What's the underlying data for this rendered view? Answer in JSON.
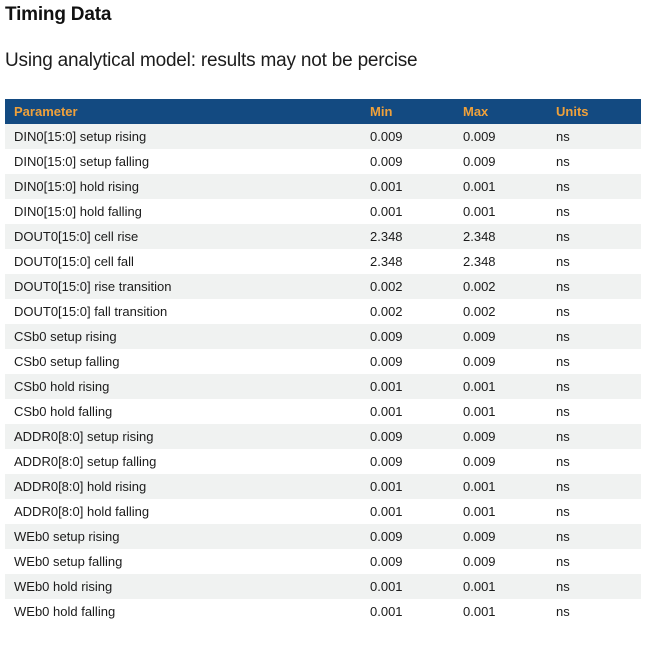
{
  "page": {
    "title": "Timing Data",
    "subtitle": "Using analytical model: results may not be percise"
  },
  "table": {
    "columns": [
      "Parameter",
      "Min",
      "Max",
      "Units"
    ],
    "rows": [
      {
        "parameter": "DIN0[15:0] setup rising",
        "min": "0.009",
        "max": "0.009",
        "units": "ns"
      },
      {
        "parameter": "DIN0[15:0] setup falling",
        "min": "0.009",
        "max": "0.009",
        "units": "ns"
      },
      {
        "parameter": "DIN0[15:0] hold rising",
        "min": "0.001",
        "max": "0.001",
        "units": "ns"
      },
      {
        "parameter": "DIN0[15:0] hold falling",
        "min": "0.001",
        "max": "0.001",
        "units": "ns"
      },
      {
        "parameter": "DOUT0[15:0] cell rise",
        "min": "2.348",
        "max": "2.348",
        "units": "ns"
      },
      {
        "parameter": "DOUT0[15:0] cell fall",
        "min": "2.348",
        "max": "2.348",
        "units": "ns"
      },
      {
        "parameter": "DOUT0[15:0] rise transition",
        "min": "0.002",
        "max": "0.002",
        "units": "ns"
      },
      {
        "parameter": "DOUT0[15:0] fall transition",
        "min": "0.002",
        "max": "0.002",
        "units": "ns"
      },
      {
        "parameter": "CSb0 setup rising",
        "min": "0.009",
        "max": "0.009",
        "units": "ns"
      },
      {
        "parameter": "CSb0 setup falling",
        "min": "0.009",
        "max": "0.009",
        "units": "ns"
      },
      {
        "parameter": "CSb0 hold rising",
        "min": "0.001",
        "max": "0.001",
        "units": "ns"
      },
      {
        "parameter": "CSb0 hold falling",
        "min": "0.001",
        "max": "0.001",
        "units": "ns"
      },
      {
        "parameter": "ADDR0[8:0] setup rising",
        "min": "0.009",
        "max": "0.009",
        "units": "ns"
      },
      {
        "parameter": "ADDR0[8:0] setup falling",
        "min": "0.009",
        "max": "0.009",
        "units": "ns"
      },
      {
        "parameter": "ADDR0[8:0] hold rising",
        "min": "0.001",
        "max": "0.001",
        "units": "ns"
      },
      {
        "parameter": "ADDR0[8:0] hold falling",
        "min": "0.001",
        "max": "0.001",
        "units": "ns"
      },
      {
        "parameter": "WEb0 setup rising",
        "min": "0.009",
        "max": "0.009",
        "units": "ns"
      },
      {
        "parameter": "WEb0 setup falling",
        "min": "0.009",
        "max": "0.009",
        "units": "ns"
      },
      {
        "parameter": "WEb0 hold rising",
        "min": "0.001",
        "max": "0.001",
        "units": "ns"
      },
      {
        "parameter": "WEb0 hold falling",
        "min": "0.001",
        "max": "0.001",
        "units": "ns"
      }
    ]
  },
  "colors": {
    "header_bg": "#134a81",
    "header_text": "#efa13b",
    "stripe": "#f0f2f1",
    "body_text": "#1b1b1b"
  }
}
